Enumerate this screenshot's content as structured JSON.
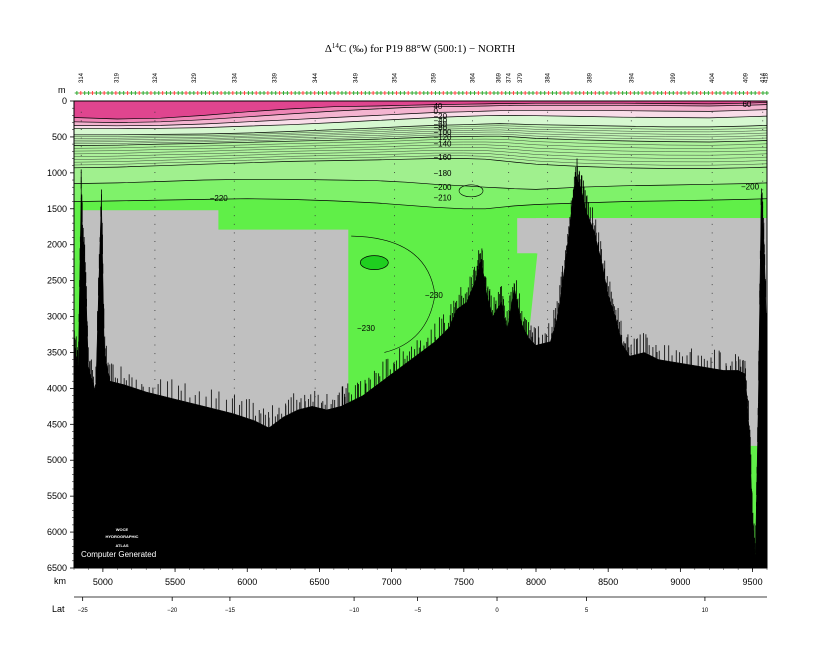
{
  "chart_data": {
    "type": "heatmap",
    "title_prefix": "Δ",
    "title_sup": "14",
    "title_main": "C (‰) for P19 88°W (500:1) − NORTH",
    "y_unit": "m",
    "x_unit": "km",
    "lat_label": "Lat",
    "xlim": [
      4800,
      9600
    ],
    "ylim": [
      0,
      6500
    ],
    "x_ticks": [
      5000,
      5500,
      6000,
      6500,
      7000,
      7500,
      8000,
      8500,
      9000,
      9500
    ],
    "y_ticks": [
      0,
      500,
      1000,
      1500,
      2000,
      2500,
      3000,
      3500,
      4000,
      4500,
      5000,
      5500,
      6000,
      6500
    ],
    "lat_ticks": [
      {
        "label": "−25",
        "km": 4860
      },
      {
        "label": "−20",
        "km": 5480
      },
      {
        "label": "−15",
        "km": 5880
      },
      {
        "label": "−10",
        "km": 6740
      },
      {
        "label": "−5",
        "km": 7180
      },
      {
        "label": "0",
        "km": 7730
      },
      {
        "label": "5",
        "km": 8350
      },
      {
        "label": "10",
        "km": 9170
      }
    ],
    "stations": [
      {
        "label": "314",
        "km": 4850
      },
      {
        "label": "319",
        "km": 5095
      },
      {
        "label": "324",
        "km": 5360
      },
      {
        "label": "329",
        "km": 5630
      },
      {
        "label": "334",
        "km": 5910
      },
      {
        "label": "339",
        "km": 6190
      },
      {
        "label": "344",
        "km": 6470
      },
      {
        "label": "349",
        "km": 6750
      },
      {
        "label": "354",
        "km": 7020
      },
      {
        "label": "359",
        "km": 7290
      },
      {
        "label": "364",
        "km": 7560
      },
      {
        "label": "369",
        "km": 7740
      },
      {
        "label": "374",
        "km": 7810
      },
      {
        "label": "379",
        "km": 7890
      },
      {
        "label": "384",
        "km": 8080
      },
      {
        "label": "389",
        "km": 8370
      },
      {
        "label": "394",
        "km": 8660
      },
      {
        "label": "399",
        "km": 8950
      },
      {
        "label": "404",
        "km": 9220
      },
      {
        "label": "409",
        "km": 9450
      },
      {
        "label": "414",
        "km": 9570
      },
      {
        "label": "418",
        "km": 9590
      }
    ],
    "contour_labels": [
      {
        "text": "40",
        "km": 7290,
        "depth": 70
      },
      {
        "text": "0",
        "km": 7290,
        "depth": 140
      },
      {
        "text": "−20",
        "km": 7290,
        "depth": 210
      },
      {
        "text": "−40",
        "km": 7290,
        "depth": 270
      },
      {
        "text": "−60",
        "km": 7290,
        "depth": 320
      },
      {
        "text": "−80",
        "km": 7290,
        "depth": 370
      },
      {
        "text": "−100",
        "km": 7290,
        "depth": 430
      },
      {
        "text": "−120",
        "km": 7290,
        "depth": 500
      },
      {
        "text": "−140",
        "km": 7290,
        "depth": 590
      },
      {
        "text": "−160",
        "km": 7290,
        "depth": 780
      },
      {
        "text": "−180",
        "km": 7290,
        "depth": 1000
      },
      {
        "text": "−200",
        "km": 7290,
        "depth": 1200
      },
      {
        "text": "−210",
        "km": 7290,
        "depth": 1340
      },
      {
        "text": "−220",
        "km": 5740,
        "depth": 1350
      },
      {
        "text": "−200",
        "km": 9420,
        "depth": 1190
      },
      {
        "text": "60",
        "km": 9430,
        "depth": 40
      },
      {
        "text": "−230",
        "km": 7230,
        "depth": 2700
      },
      {
        "text": "−230",
        "km": 6760,
        "depth": 3160
      }
    ],
    "colors": {
      "gt_60": "#e0458f",
      "r40_60": "#ee86b6",
      "r20_40": "#f4b4d0",
      "r0_20": "#f9dde9",
      "rn50_0": "#d6f8d0",
      "rn120_n50": "#c0f4b4",
      "rn170_n120": "#adf29c",
      "rn200_n170": "#a0f08e",
      "rn220_n200": "#7ff26a",
      "lt_n220": "#60ef48",
      "lt_n240": "#1fcf1f",
      "no_data": "#c0c0c0",
      "topography": "#000000"
    },
    "logo_lines": [
      "WOCE",
      "HYDROGRAPHIC",
      "ATLAS"
    ],
    "credit": "Computer Generated"
  }
}
